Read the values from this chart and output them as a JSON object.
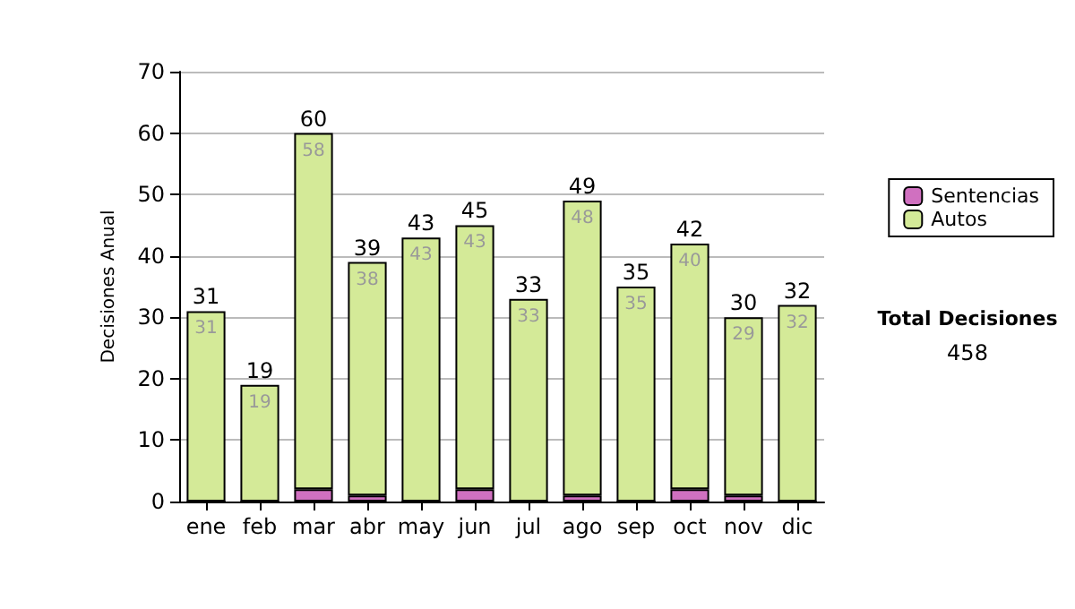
{
  "chart_data": {
    "type": "bar",
    "stacked": true,
    "ylabel": "Decisiones Anual",
    "categories": [
      "ene",
      "feb",
      "mar",
      "abr",
      "may",
      "jun",
      "jul",
      "ago",
      "sep",
      "oct",
      "nov",
      "dic"
    ],
    "series": [
      {
        "name": "Sentencias",
        "color": "#d070c0",
        "values": [
          0,
          0,
          2,
          1,
          0,
          2,
          0,
          1,
          0,
          2,
          1,
          0
        ]
      },
      {
        "name": "Autos",
        "color": "#d4ea98",
        "values": [
          31,
          19,
          58,
          38,
          43,
          43,
          33,
          48,
          35,
          40,
          29,
          32
        ],
        "value_labels": [
          "31",
          "19",
          "58",
          "38",
          "43",
          "43",
          "33",
          "48",
          "35",
          "40",
          "29",
          "32"
        ]
      }
    ],
    "totals": [
      "31",
      "19",
      "60",
      "39",
      "43",
      "45",
      "33",
      "49",
      "35",
      "42",
      "30",
      "32"
    ],
    "ylim": [
      0,
      70
    ],
    "yticks": [
      0,
      10,
      20,
      30,
      40,
      50,
      60,
      70
    ],
    "grid": "y",
    "legend": "right",
    "annotations": [
      "Total Decisiones",
      "458"
    ]
  }
}
